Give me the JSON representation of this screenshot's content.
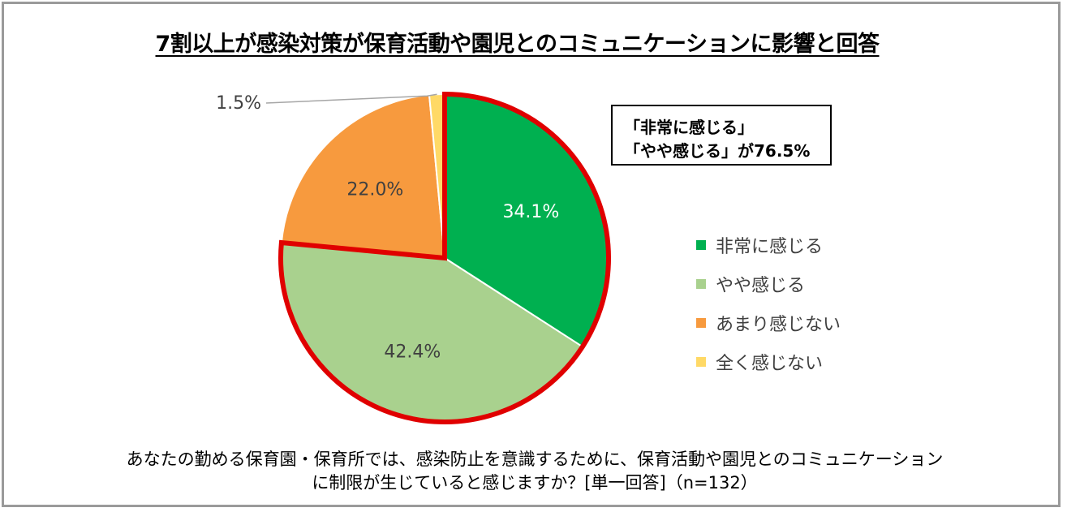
{
  "title": "7割以上が感染対策が保育活動や園児とのコミュニケーションに影響と回答",
  "callout": {
    "line1": "「非常に感じる」",
    "line2": "「やや感じる」が76.5%"
  },
  "caption": {
    "line1": "あなたの勤める保育園・保育所では、感染防止を意識するために、保育活動や園児とのコミュニケーション",
    "line2": "に制限が生じていると感じますか？[単一回答]（n=132）"
  },
  "chart_data": {
    "type": "pie",
    "title": "7割以上が感染対策が保育活動や園児とのコミュニケーションに影響と回答",
    "unit": "%",
    "start_angle_deg": 0,
    "direction": "clockwise",
    "legend_position": "right",
    "highlighted_slices": [
      "非常に感じる",
      "やや感じる"
    ],
    "slices": [
      {
        "label": "非常に感じる",
        "value": 34.1,
        "display": "34.1%",
        "color": "#00b050",
        "label_color": "#ffffff"
      },
      {
        "label": "やや感じる",
        "value": 42.4,
        "display": "42.4%",
        "color": "#a9d18e",
        "label_color": "#404040"
      },
      {
        "label": "あまり感じない",
        "value": 22.0,
        "display": "22.0%",
        "color": "#f79a3e",
        "label_color": "#404040"
      },
      {
        "label": "全く感じない",
        "value": 1.5,
        "display": "1.5%",
        "color": "#ffd966",
        "label_color": "#404040"
      }
    ],
    "highlight_color": "#e00000"
  }
}
